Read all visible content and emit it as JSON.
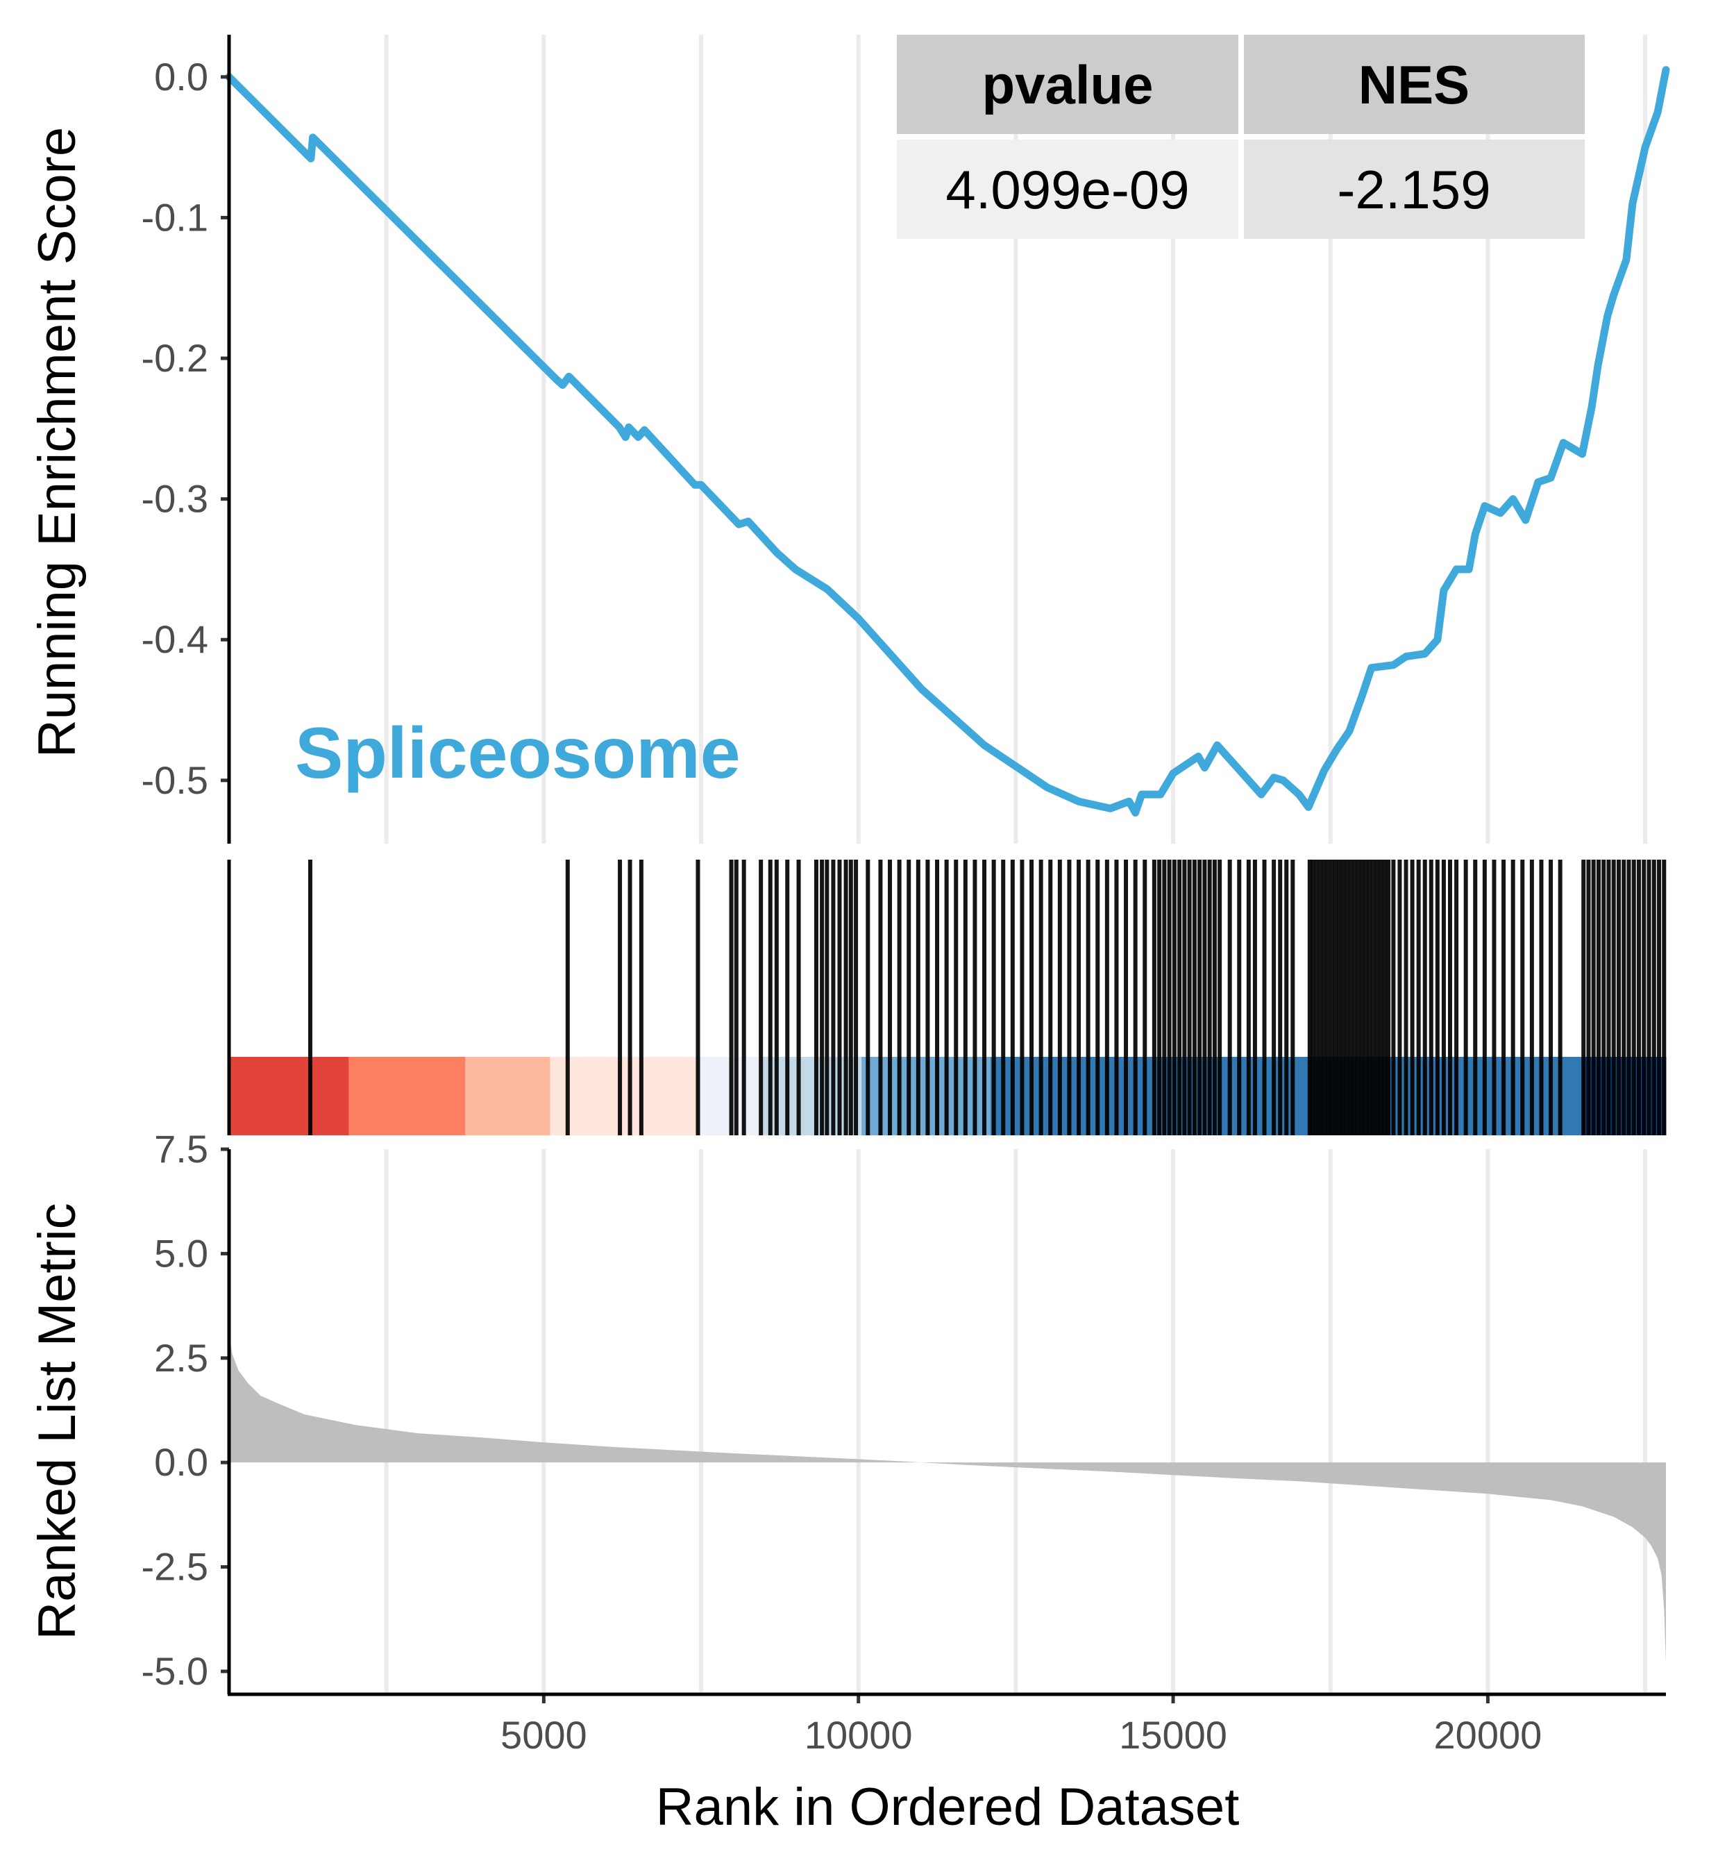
{
  "chart_data": [
    {
      "type": "line",
      "panel": "running-enrichment-score",
      "ylabel": "Running Enrichment Score",
      "yticks": [
        "0.0",
        "-0.1",
        "-0.2",
        "-0.3",
        "-0.4",
        "-0.5"
      ],
      "ylim": [
        -0.545,
        0.03
      ],
      "xlim": [
        0,
        22830
      ],
      "grid": "vertical",
      "line_color": "#3FA9DB",
      "annotation": "Spliceosome",
      "stats_table": {
        "headers": [
          "pvalue",
          "NES"
        ],
        "values": [
          "4.099e-09",
          "-2.159"
        ]
      },
      "series": [
        {
          "points": [
            [
              0,
              0.0
            ],
            [
              1300,
              -0.058
            ],
            [
              1330,
              -0.043
            ],
            [
              5200,
              -0.215
            ],
            [
              5300,
              -0.219
            ],
            [
              5400,
              -0.213
            ],
            [
              6200,
              -0.249
            ],
            [
              6300,
              -0.256
            ],
            [
              6350,
              -0.249
            ],
            [
              6500,
              -0.256
            ],
            [
              6600,
              -0.251
            ],
            [
              7400,
              -0.29
            ],
            [
              7500,
              -0.29
            ],
            [
              8100,
              -0.318
            ],
            [
              8250,
              -0.316
            ],
            [
              8700,
              -0.338
            ],
            [
              9000,
              -0.35
            ],
            [
              9500,
              -0.364
            ],
            [
              10000,
              -0.385
            ],
            [
              11000,
              -0.435
            ],
            [
              12000,
              -0.475
            ],
            [
              12500,
              -0.49
            ],
            [
              13000,
              -0.505
            ],
            [
              13500,
              -0.515
            ],
            [
              14000,
              -0.52
            ],
            [
              14300,
              -0.515
            ],
            [
              14400,
              -0.523
            ],
            [
              14500,
              -0.51
            ],
            [
              14800,
              -0.51
            ],
            [
              15000,
              -0.495
            ],
            [
              15400,
              -0.483
            ],
            [
              15500,
              -0.491
            ],
            [
              15700,
              -0.475
            ],
            [
              16400,
              -0.51
            ],
            [
              16600,
              -0.498
            ],
            [
              16750,
              -0.5
            ],
            [
              17000,
              -0.51
            ],
            [
              17150,
              -0.519
            ],
            [
              17400,
              -0.493
            ],
            [
              17600,
              -0.478
            ],
            [
              17800,
              -0.465
            ],
            [
              18000,
              -0.44
            ],
            [
              18150,
              -0.42
            ],
            [
              18500,
              -0.418
            ],
            [
              18700,
              -0.412
            ],
            [
              19000,
              -0.41
            ],
            [
              19200,
              -0.4
            ],
            [
              19300,
              -0.365
            ],
            [
              19500,
              -0.35
            ],
            [
              19700,
              -0.35
            ],
            [
              19800,
              -0.325
            ],
            [
              19950,
              -0.305
            ],
            [
              20200,
              -0.31
            ],
            [
              20400,
              -0.3
            ],
            [
              20600,
              -0.315
            ],
            [
              20800,
              -0.288
            ],
            [
              21000,
              -0.285
            ],
            [
              21200,
              -0.26
            ],
            [
              21500,
              -0.268
            ],
            [
              21650,
              -0.235
            ],
            [
              21750,
              -0.205
            ],
            [
              21900,
              -0.17
            ],
            [
              22000,
              -0.155
            ],
            [
              22200,
              -0.13
            ],
            [
              22300,
              -0.09
            ],
            [
              22500,
              -0.05
            ],
            [
              22700,
              -0.025
            ],
            [
              22830,
              0.005
            ]
          ]
        }
      ]
    },
    {
      "type": "barcode",
      "panel": "gene-hits",
      "xlim": [
        0,
        22830
      ],
      "hit_positions": [
        1290,
        5380,
        6210,
        6370,
        6550,
        7450,
        7980,
        8060,
        8180,
        8450,
        8600,
        8700,
        8870,
        9050,
        9330,
        9420,
        9500,
        9600,
        9700,
        9800,
        9880,
        9960,
        10150,
        10350,
        10500,
        10650,
        10800,
        10950,
        11100,
        11250,
        11400,
        11550,
        11700,
        11850,
        12000,
        12150,
        12300,
        12450,
        12600,
        12750,
        12900,
        13050,
        13200,
        13350,
        13500,
        13650,
        13800,
        13950,
        14100,
        14250,
        14400,
        14550,
        14700,
        14780,
        14860,
        14940,
        15020,
        15100,
        15180,
        15260,
        15340,
        15420,
        15500,
        15580,
        15660,
        15740,
        15900,
        16050,
        16200,
        16300,
        16450,
        16600,
        16700,
        16800,
        16900,
        17170,
        17220,
        17280,
        17340,
        17400,
        17460,
        17520,
        17580,
        17640,
        17700,
        17760,
        17820,
        17880,
        17940,
        18000,
        18060,
        18120,
        18180,
        18240,
        18300,
        18360,
        18420,
        18500,
        18600,
        18700,
        18800,
        18900,
        19000,
        19100,
        19200,
        19300,
        19400,
        19500,
        19650,
        19800,
        19950,
        20100,
        20250,
        20400,
        20550,
        20700,
        20850,
        21000,
        21150,
        21520,
        21600,
        21680,
        21760,
        21840,
        21920,
        22000,
        22080,
        22160,
        22240,
        22320,
        22400,
        22480,
        22560,
        22640,
        22720,
        22800
      ],
      "color_bands": [
        {
          "from": 0,
          "to": 1900,
          "color": "#E2433B"
        },
        {
          "from": 1900,
          "to": 3750,
          "color": "#FC7F61"
        },
        {
          "from": 3750,
          "to": 5100,
          "color": "#FDB89E"
        },
        {
          "from": 5100,
          "to": 7450,
          "color": "#FEE6DC"
        },
        {
          "from": 7450,
          "to": 8450,
          "color": "#EDF1FA"
        },
        {
          "from": 8450,
          "to": 10050,
          "color": "#C4D9E8"
        },
        {
          "from": 10050,
          "to": 12100,
          "color": "#6EAAD4"
        },
        {
          "from": 12100,
          "to": 21500,
          "color": "#3279B4"
        },
        {
          "from": 21500,
          "to": 22830,
          "color": "#0A4C96"
        }
      ]
    },
    {
      "type": "area",
      "panel": "ranked-list-metric",
      "ylabel": "Ranked List Metric",
      "xlabel": "Rank in Ordered Dataset",
      "yticks": [
        "7.5",
        "5.0",
        "2.5",
        "0.0",
        "-2.5",
        "-5.0"
      ],
      "xticks": [
        "5000",
        "10000",
        "15000",
        "20000"
      ],
      "ylim": [
        -5.3,
        7.5
      ],
      "xlim": [
        0,
        22830
      ],
      "grid": "vertical",
      "fill_color": "#BEBEBE",
      "x": [
        0,
        50,
        150,
        300,
        500,
        800,
        1200,
        2000,
        3000,
        4000,
        5000,
        6000,
        7000,
        8000,
        9000,
        10000,
        10800,
        11000,
        12000,
        13000,
        14000,
        15000,
        16000,
        17000,
        18000,
        19000,
        20000,
        21000,
        21500,
        22000,
        22300,
        22500,
        22600,
        22700,
        22760,
        22800,
        22830
      ],
      "values": [
        3.1,
        2.6,
        2.2,
        1.9,
        1.6,
        1.4,
        1.15,
        0.9,
        0.7,
        0.6,
        0.48,
        0.38,
        0.3,
        0.22,
        0.15,
        0.08,
        0.02,
        0.0,
        -0.08,
        -0.15,
        -0.22,
        -0.3,
        -0.38,
        -0.45,
        -0.55,
        -0.65,
        -0.75,
        -0.9,
        -1.05,
        -1.3,
        -1.55,
        -1.8,
        -2.0,
        -2.3,
        -2.7,
        -3.5,
        -4.8
      ]
    }
  ]
}
